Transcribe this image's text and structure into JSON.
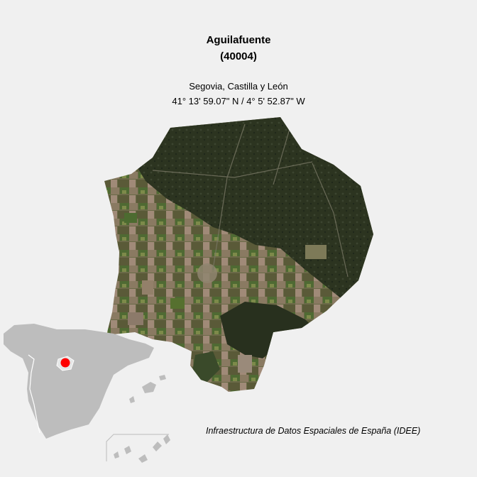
{
  "map": {
    "title": "Aguilafuente",
    "code": "(40004)",
    "region": "Segovia, Castilla y León",
    "coordinates": "41° 13' 59.07\" N / 4° 5' 52.87\" W",
    "credit": "Infraestructura de Datos Espaciales de España (IDEE)",
    "colors": {
      "background": "#f0f0f0",
      "inset_land": "#bdbdbd",
      "location_marker": "#ff0000",
      "forest": "#2b3320",
      "farmland": "#5e6a3f"
    }
  }
}
